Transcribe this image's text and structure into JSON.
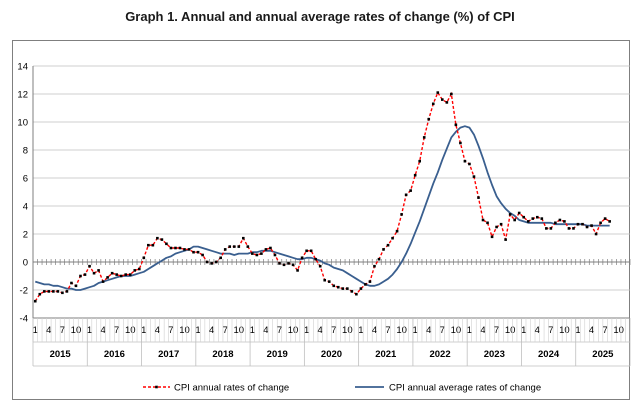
{
  "chart_data": {
    "type": "line",
    "title": "Graph 1. Annual and annual average rates of change (%) of CPI",
    "ylim": [
      -4,
      14
    ],
    "yticks": [
      -4,
      -2,
      0,
      2,
      4,
      6,
      8,
      10,
      12,
      14
    ],
    "month_ticks": [
      "1",
      "4",
      "7",
      "10"
    ],
    "years": [
      "2015",
      "2016",
      "2017",
      "2018",
      "2019",
      "2020",
      "2021",
      "2022",
      "2023",
      "2024",
      "2025"
    ],
    "x": [
      "2015-01",
      "2015-02",
      "2015-03",
      "2015-04",
      "2015-05",
      "2015-06",
      "2015-07",
      "2015-08",
      "2015-09",
      "2015-10",
      "2015-11",
      "2015-12",
      "2016-01",
      "2016-02",
      "2016-03",
      "2016-04",
      "2016-05",
      "2016-06",
      "2016-07",
      "2016-08",
      "2016-09",
      "2016-10",
      "2016-11",
      "2016-12",
      "2017-01",
      "2017-02",
      "2017-03",
      "2017-04",
      "2017-05",
      "2017-06",
      "2017-07",
      "2017-08",
      "2017-09",
      "2017-10",
      "2017-11",
      "2017-12",
      "2018-01",
      "2018-02",
      "2018-03",
      "2018-04",
      "2018-05",
      "2018-06",
      "2018-07",
      "2018-08",
      "2018-09",
      "2018-10",
      "2018-11",
      "2018-12",
      "2019-01",
      "2019-02",
      "2019-03",
      "2019-04",
      "2019-05",
      "2019-06",
      "2019-07",
      "2019-08",
      "2019-09",
      "2019-10",
      "2019-11",
      "2019-12",
      "2020-01",
      "2020-02",
      "2020-03",
      "2020-04",
      "2020-05",
      "2020-06",
      "2020-07",
      "2020-08",
      "2020-09",
      "2020-10",
      "2020-11",
      "2020-12",
      "2021-01",
      "2021-02",
      "2021-03",
      "2021-04",
      "2021-05",
      "2021-06",
      "2021-07",
      "2021-08",
      "2021-09",
      "2021-10",
      "2021-11",
      "2021-12",
      "2022-01",
      "2022-02",
      "2022-03",
      "2022-04",
      "2022-05",
      "2022-06",
      "2022-07",
      "2022-08",
      "2022-09",
      "2022-10",
      "2022-11",
      "2022-12",
      "2023-01",
      "2023-02",
      "2023-03",
      "2023-04",
      "2023-05",
      "2023-06",
      "2023-07",
      "2023-08",
      "2023-09",
      "2023-10",
      "2023-11",
      "2023-12",
      "2024-01",
      "2024-02",
      "2024-03",
      "2024-04",
      "2024-05",
      "2024-06",
      "2024-07",
      "2024-08",
      "2024-09",
      "2024-10",
      "2024-11",
      "2024-12",
      "2025-01",
      "2025-02",
      "2025-03",
      "2025-04",
      "2025-05",
      "2025-06",
      "2025-07",
      "2025-08"
    ],
    "series": [
      {
        "name": "CPI annual rates of change",
        "color": "#ff0000",
        "style": "dashed-with-markers",
        "values": [
          -2.8,
          -2.3,
          -2.1,
          -2.1,
          -2.1,
          -2.1,
          -2.2,
          -2.1,
          -1.5,
          -1.7,
          -1.0,
          -0.9,
          -0.3,
          -0.8,
          -0.6,
          -1.4,
          -1.1,
          -0.8,
          -0.9,
          -1.0,
          -0.9,
          -0.9,
          -0.6,
          -0.5,
          0.3,
          1.2,
          1.2,
          1.7,
          1.6,
          1.3,
          1.0,
          1.0,
          1.0,
          0.9,
          0.9,
          0.7,
          0.7,
          0.5,
          0.0,
          -0.1,
          0.0,
          0.3,
          0.9,
          1.1,
          1.1,
          1.1,
          1.7,
          1.1,
          0.6,
          0.5,
          0.6,
          0.9,
          1.0,
          0.5,
          -0.1,
          -0.2,
          -0.1,
          -0.2,
          -0.6,
          0.3,
          0.8,
          0.8,
          0.2,
          -0.3,
          -1.3,
          -1.4,
          -1.7,
          -1.8,
          -1.9,
          -1.9,
          -2.1,
          -2.3,
          -1.9,
          -1.6,
          -1.4,
          -0.3,
          0.2,
          0.9,
          1.2,
          1.7,
          2.2,
          3.4,
          4.8,
          5.1,
          6.2,
          7.2,
          8.9,
          10.2,
          11.3,
          12.1,
          11.6,
          11.4,
          12.0,
          9.8,
          8.5,
          7.2,
          7.0,
          6.1,
          4.6,
          3.0,
          2.8,
          1.8,
          2.5,
          2.7,
          1.6,
          3.4,
          3.0,
          3.5,
          3.2,
          2.9,
          3.1,
          3.2,
          3.1,
          2.4,
          2.4,
          2.8,
          3.0,
          2.9,
          2.4,
          2.4,
          2.7,
          2.7,
          2.5,
          2.6,
          2.0,
          2.8,
          3.1,
          2.9
        ]
      },
      {
        "name": "CPI annual average rates of change",
        "color": "#3a5f8f",
        "style": "solid",
        "values": [
          -1.4,
          -1.5,
          -1.6,
          -1.6,
          -1.7,
          -1.7,
          -1.8,
          -1.9,
          -1.9,
          -2.0,
          -2.0,
          -1.9,
          -1.8,
          -1.7,
          -1.5,
          -1.4,
          -1.3,
          -1.2,
          -1.1,
          -1.0,
          -1.0,
          -1.0,
          -0.9,
          -0.8,
          -0.7,
          -0.5,
          -0.3,
          -0.1,
          0.1,
          0.3,
          0.4,
          0.6,
          0.7,
          0.8,
          0.9,
          1.1,
          1.1,
          1.0,
          0.9,
          0.8,
          0.7,
          0.6,
          0.6,
          0.6,
          0.5,
          0.6,
          0.6,
          0.6,
          0.7,
          0.7,
          0.8,
          0.8,
          0.8,
          0.7,
          0.6,
          0.5,
          0.4,
          0.3,
          0.2,
          0.2,
          0.3,
          0.3,
          0.2,
          0.1,
          -0.1,
          -0.2,
          -0.4,
          -0.5,
          -0.6,
          -0.8,
          -1.0,
          -1.2,
          -1.4,
          -1.6,
          -1.7,
          -1.7,
          -1.6,
          -1.4,
          -1.2,
          -0.9,
          -0.5,
          0.0,
          0.6,
          1.3,
          2.1,
          2.9,
          3.8,
          4.7,
          5.6,
          6.4,
          7.3,
          8.1,
          8.9,
          9.3,
          9.6,
          9.7,
          9.6,
          9.1,
          8.3,
          7.4,
          6.4,
          5.5,
          4.7,
          4.2,
          3.8,
          3.5,
          3.3,
          3.0,
          2.9,
          2.8,
          2.8,
          2.8,
          2.8,
          2.8,
          2.8,
          2.7,
          2.7,
          2.7,
          2.7,
          2.7,
          2.7,
          2.7,
          2.6,
          2.6,
          2.6,
          2.6,
          2.6,
          2.6
        ]
      }
    ],
    "legend_position": "bottom",
    "grid": "horizontal"
  }
}
